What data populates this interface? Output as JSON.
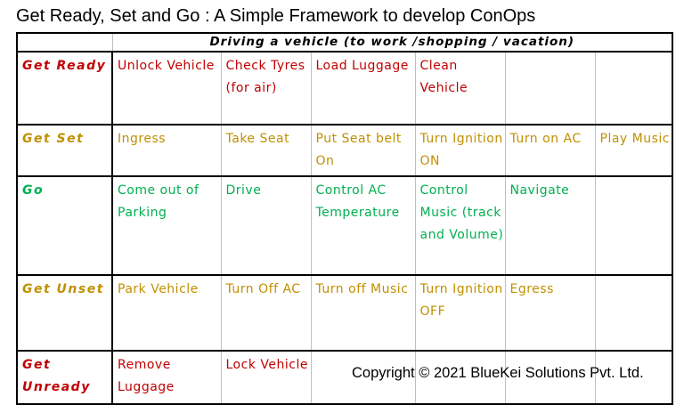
{
  "title": "Get Ready, Set and Go : A Simple Framework to develop ConOps",
  "header": "Driving a vehicle (to work /shopping / vacation)",
  "copyright": "Copyright © 2021 BlueKei Solutions Pvt. Ltd.",
  "colors": {
    "get_ready": "#c00000",
    "get_set": "#c09000",
    "go": "#00b050",
    "get_unset": "#c09000",
    "get_unready": "#c00000"
  },
  "rows": [
    {
      "phase": "Get Ready",
      "color": "#c00000",
      "steps": [
        "Unlock Vehicle",
        "Check Tyres (for air)",
        "Load Luggage",
        "Clean Vehicle",
        "",
        ""
      ]
    },
    {
      "phase": "Get Set",
      "color": "#c09000",
      "steps": [
        "Ingress",
        "Take Seat",
        "Put Seat belt On",
        "Turn Ignition ON",
        "Turn on AC",
        "Play Music"
      ]
    },
    {
      "phase": "Go",
      "color": "#00b050",
      "steps": [
        "Come out of Parking",
        "Drive",
        "Control AC Temperature",
        "Control Music (track and Volume)",
        "Navigate",
        ""
      ]
    },
    {
      "phase": "Get Unset",
      "color": "#c09000",
      "steps": [
        "Park Vehicle",
        "Turn Off AC",
        "Turn off Music",
        "Turn Ignition OFF",
        "Egress",
        ""
      ]
    },
    {
      "phase": "Get Unready",
      "color": "#c00000",
      "steps": [
        "Remove Luggage",
        "Lock Vehicle",
        "",
        "",
        "",
        ""
      ]
    }
  ]
}
